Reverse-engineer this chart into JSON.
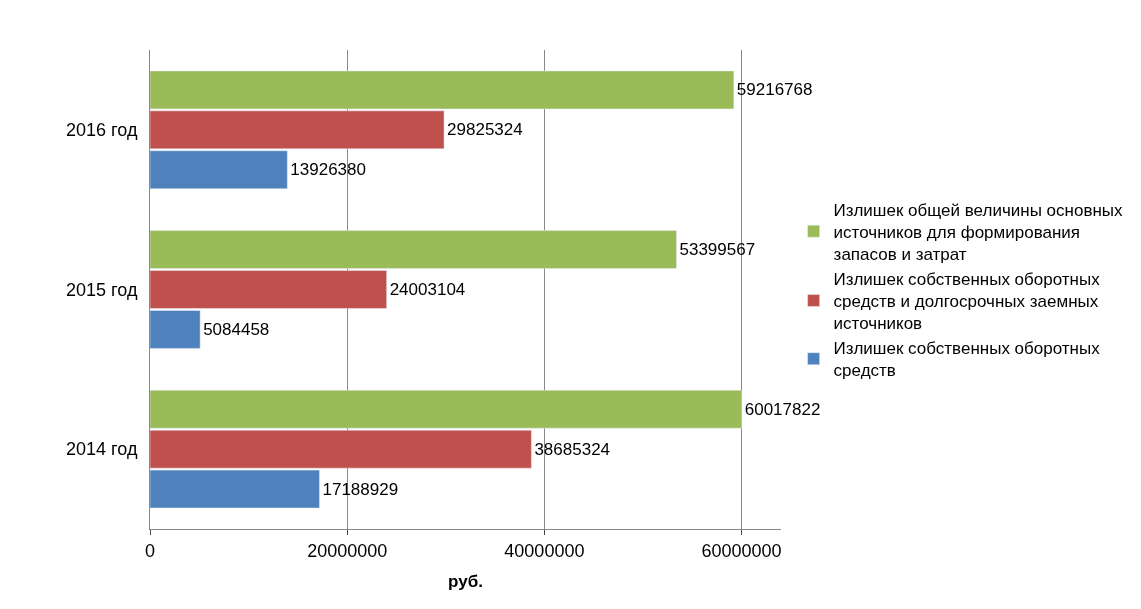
{
  "chart_data": {
    "type": "bar",
    "orientation": "horizontal",
    "categories": [
      "2016 год",
      "2015 год",
      "2014 год"
    ],
    "series": [
      {
        "name": "Излишек общей величины основных источников для формирования запасов и затрат",
        "color": "#9bbb59",
        "values": [
          59216768,
          53399567,
          60017822
        ]
      },
      {
        "name": "Излишек собственных оборотных средств и долгосрочных заемных источников",
        "color": "#c0504d",
        "values": [
          29825324,
          24003104,
          38685324
        ]
      },
      {
        "name": "Излишек собственных оборотных средств",
        "color": "#4f81bd",
        "values": [
          13926380,
          5084458,
          17188929
        ]
      }
    ],
    "xlim": [
      0,
      64000000
    ],
    "xticks": [
      0,
      20000000,
      40000000,
      60000000
    ],
    "xlabel": "руб.",
    "grid": "x",
    "legend": "right",
    "data_labels": true
  }
}
